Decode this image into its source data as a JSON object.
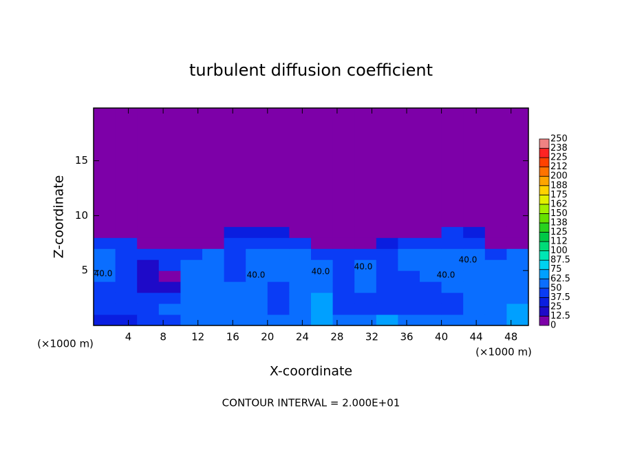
{
  "chart_data": {
    "type": "heatmap",
    "title": "turbulent diffusion coefficient",
    "x_label": "X-coordinate",
    "y_label": "Z-coordinate",
    "x_unit": "(×1000 m)",
    "note": "CONTOUR INTERVAL = 2.000E+01",
    "contour_label": "40.0",
    "xlim": [
      0,
      50
    ],
    "ylim": [
      0,
      19.8
    ],
    "xticks": [
      4,
      8,
      12,
      16,
      20,
      24,
      28,
      32,
      36,
      40,
      44,
      48
    ],
    "yticks": [
      5,
      10,
      15
    ],
    "xbins": [
      0,
      2.5,
      5,
      7.5,
      10,
      12.5,
      15,
      17.5,
      20,
      22.5,
      25,
      27.5,
      30,
      32.5,
      35,
      37.5,
      40,
      42.5,
      45,
      47.5,
      50
    ],
    "ybins": [
      0,
      1,
      2,
      3,
      4,
      5,
      6,
      7,
      8,
      9,
      19.8
    ],
    "values": [
      [
        30,
        35,
        40,
        45,
        50,
        55,
        60,
        55,
        50,
        60,
        70,
        55,
        60,
        65,
        55,
        50,
        50,
        55,
        60,
        70
      ],
      [
        40,
        45,
        45,
        50,
        55,
        60,
        55,
        50,
        45,
        55,
        65,
        45,
        45,
        45,
        45,
        45,
        45,
        50,
        55,
        65
      ],
      [
        45,
        45,
        40,
        45,
        55,
        55,
        50,
        50,
        45,
        50,
        65,
        45,
        45,
        45,
        45,
        45,
        45,
        50,
        60,
        60
      ],
      [
        45,
        40,
        20,
        15,
        60,
        60,
        50,
        55,
        45,
        50,
        60,
        45,
        50,
        45,
        45,
        45,
        50,
        50,
        60,
        55
      ],
      [
        50,
        40,
        15,
        10,
        50,
        55,
        45,
        50,
        55,
        50,
        55,
        45,
        50,
        45,
        45,
        50,
        50,
        55,
        50,
        50
      ],
      [
        50,
        45,
        20,
        45,
        50,
        50,
        45,
        55,
        55,
        55,
        50,
        40,
        50,
        45,
        50,
        50,
        50,
        55,
        50,
        50
      ],
      [
        50,
        45,
        40,
        45,
        45,
        50,
        45,
        50,
        50,
        50,
        45,
        40,
        45,
        45,
        50,
        50,
        50,
        50,
        45,
        50
      ],
      [
        45,
        40,
        5,
        5,
        5,
        5,
        45,
        45,
        45,
        40,
        5,
        5,
        5,
        35,
        40,
        45,
        45,
        40,
        5,
        5
      ],
      [
        0,
        0,
        0,
        0,
        0,
        0,
        30,
        35,
        30,
        0,
        0,
        0,
        0,
        0,
        0,
        0,
        40,
        35,
        0,
        0
      ],
      [
        0,
        0,
        0,
        0,
        0,
        0,
        0,
        0,
        0,
        0,
        0,
        0,
        0,
        0,
        0,
        0,
        0,
        0,
        0,
        0
      ]
    ],
    "colorbar": {
      "levels": [
        0,
        12.5,
        25,
        37.5,
        50,
        62.5,
        75,
        87.5,
        100,
        112,
        125,
        138,
        150,
        162,
        175,
        188,
        200,
        212,
        225,
        238,
        250
      ],
      "colors": [
        "#7d00a8",
        "#1e0ac8",
        "#0a1ee0",
        "#0a3cf5",
        "#0a6eff",
        "#00a0ff",
        "#00d2f0",
        "#00e6b4",
        "#00dc78",
        "#00c846",
        "#28d21e",
        "#64e100",
        "#a0f000",
        "#e1f000",
        "#ffd200",
        "#ffa500",
        "#ff7300",
        "#ff4100",
        "#ff2323",
        "#f08282"
      ]
    }
  }
}
